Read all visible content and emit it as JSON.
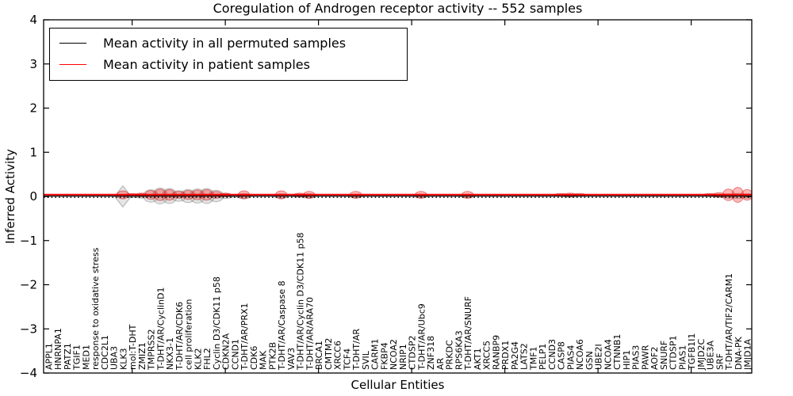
{
  "title": "Coregulation of Androgen receptor activity -- 552 samples",
  "legend": {
    "items": [
      {
        "label": "Mean activity in all permuted samples",
        "color": "#000000"
      },
      {
        "label": "Mean activity in patient samples",
        "color": "#ff0000"
      }
    ]
  },
  "axes": {
    "xlabel": "Cellular Entities",
    "ylabel": "Inferred Activity",
    "ytick_labels": [
      "4",
      "3",
      "2",
      "1",
      "0",
      "−1",
      "−2",
      "−3",
      "−4"
    ],
    "ytick_values": [
      4,
      3,
      2,
      1,
      0,
      -1,
      -2,
      -3,
      -4
    ],
    "ylim": [
      -4,
      4
    ]
  },
  "chart_data": {
    "type": "line",
    "variant": "violin distributions of activity around flat mean lines at ~0",
    "title": "Coregulation of Androgen receptor activity -- 552 samples",
    "xlabel": "Cellular Entities",
    "ylabel": "Inferred Activity",
    "ylim": [
      -4,
      4
    ],
    "grid": false,
    "legend_position": "upper left",
    "n_samples": 552,
    "categories": [
      "APPL1",
      "HNRNPA1",
      "PATZ1",
      "TGIF1",
      "MED1",
      "response to oxidative stress",
      "CDC2L1",
      "UBA3",
      "KLK3",
      "mol:T-DHT",
      "ZMIZ1",
      "TMPRSS2",
      "T-DHT/AR/CyclinD1",
      "NKX3-1",
      "T-DHT/AR/CDK6",
      "cell proliferation",
      "KLK2",
      "FHL2",
      "Cyclin D3/CDK11 p58",
      "CDKN2A",
      "CCND1",
      "T-DHT/AR/PRX1",
      "CDK6",
      "MAK",
      "PTK2B",
      "T-DHT/AR/Caspase 8",
      "VAV3",
      "T-DHT/AR/Cyclin D3/CDK11 p58",
      "T-DHT/AR/ARA70",
      "BRCA1",
      "CMTM2",
      "XRCC6",
      "TCF4",
      "T-DHT/AR",
      "SVIL",
      "CARM1",
      "FKBP4",
      "NCOA2",
      "NRIP1",
      "CTDSP2",
      "T-DHT/AR/Ubc9",
      "ZNF318",
      "AR",
      "PRKDC",
      "RPS6KA3",
      "T-DHT/AR/SNURF",
      "AKT1",
      "XRCC5",
      "RANBP9",
      "PRDX1",
      "PA2G4",
      "LATS2",
      "TMF1",
      "PELP1",
      "CCND3",
      "CASP8",
      "PIAS4",
      "NCOA6",
      "GSN",
      "UBE2I",
      "NCOA4",
      "CTNNB1",
      "HIP1",
      "PIAS3",
      "PAWR",
      "AOF2",
      "SNURF",
      "CTDSP1",
      "PIAS1",
      "TGFB1I1",
      "JMJD2C",
      "UBE3A",
      "SRF",
      "T-DHT/AR/TIF2/CARM1",
      "DNA-PK",
      "JMJD1A"
    ],
    "series": [
      {
        "name": "Mean activity in all permuted samples",
        "style": "solid",
        "color": "#000000",
        "constant_value": 0.01
      },
      {
        "name": "Mean activity in patient samples",
        "style": "solid",
        "color": "#ff0000",
        "constant_value": 0.04
      },
      {
        "name": "zero reference",
        "style": "dotted",
        "color": "#000000",
        "constant_value": -0.02
      }
    ],
    "violins": {
      "patient_red_halfwidth": [
        0.02,
        0.02,
        0.02,
        0.02,
        0.02,
        0.02,
        0.02,
        0.02,
        0.09,
        0.03,
        0.04,
        0.1,
        0.13,
        0.12,
        0.08,
        0.1,
        0.11,
        0.12,
        0.08,
        0.04,
        0.025,
        0.09,
        0.025,
        0.025,
        0.025,
        0.09,
        0.025,
        0.04,
        0.08,
        0.02,
        0.02,
        0.02,
        0.02,
        0.08,
        0.02,
        0.02,
        0.02,
        0.02,
        0.02,
        0.02,
        0.08,
        0.02,
        0.02,
        0.02,
        0.02,
        0.08,
        0.02,
        0.02,
        0.02,
        0.02,
        0.02,
        0.02,
        0.02,
        0.02,
        0.02,
        0.03,
        0.04,
        0.03,
        0.02,
        0.02,
        0.02,
        0.02,
        0.02,
        0.02,
        0.02,
        0.02,
        0.02,
        0.02,
        0.02,
        0.02,
        0.02,
        0.03,
        0.05,
        0.13,
        0.17,
        0.12
      ],
      "permuted_gray_halfwidth": [
        0.012,
        0.012,
        0.012,
        0.012,
        0.012,
        0.012,
        0.012,
        0.012,
        0.02,
        0.04,
        0.05,
        0.14,
        0.18,
        0.17,
        0.12,
        0.15,
        0.16,
        0.17,
        0.13,
        0.06,
        0.03,
        0.06,
        0.015,
        0.015,
        0.015,
        0.05,
        0.015,
        0.03,
        0.05,
        0.012,
        0.012,
        0.012,
        0.012,
        0.04,
        0.012,
        0.012,
        0.012,
        0.012,
        0.012,
        0.012,
        0.04,
        0.012,
        0.012,
        0.012,
        0.012,
        0.04,
        0.012,
        0.012,
        0.012,
        0.012,
        0.012,
        0.012,
        0.012,
        0.012,
        0.012,
        0.02,
        0.03,
        0.02,
        0.012,
        0.012,
        0.012,
        0.012,
        0.012,
        0.012,
        0.012,
        0.012,
        0.012,
        0.012,
        0.012,
        0.012,
        0.02,
        0.02,
        0.03,
        0.05,
        0.06,
        0.05
      ],
      "diamond_marker": {
        "category_index": 8,
        "category": "KLK3",
        "halfwidth": 0.24
      }
    },
    "colors": {
      "patient_fill": "rgba(255,0,0,0.28)",
      "patient_edge": "rgba(205,30,30,0.5)",
      "permuted_fill": "rgba(128,128,128,0.22)",
      "permuted_edge": "rgba(120,120,120,0.45)",
      "diamond_fill": "rgba(0,0,0,0.10)",
      "diamond_edge": "rgba(0,0,0,0.22)"
    }
  }
}
